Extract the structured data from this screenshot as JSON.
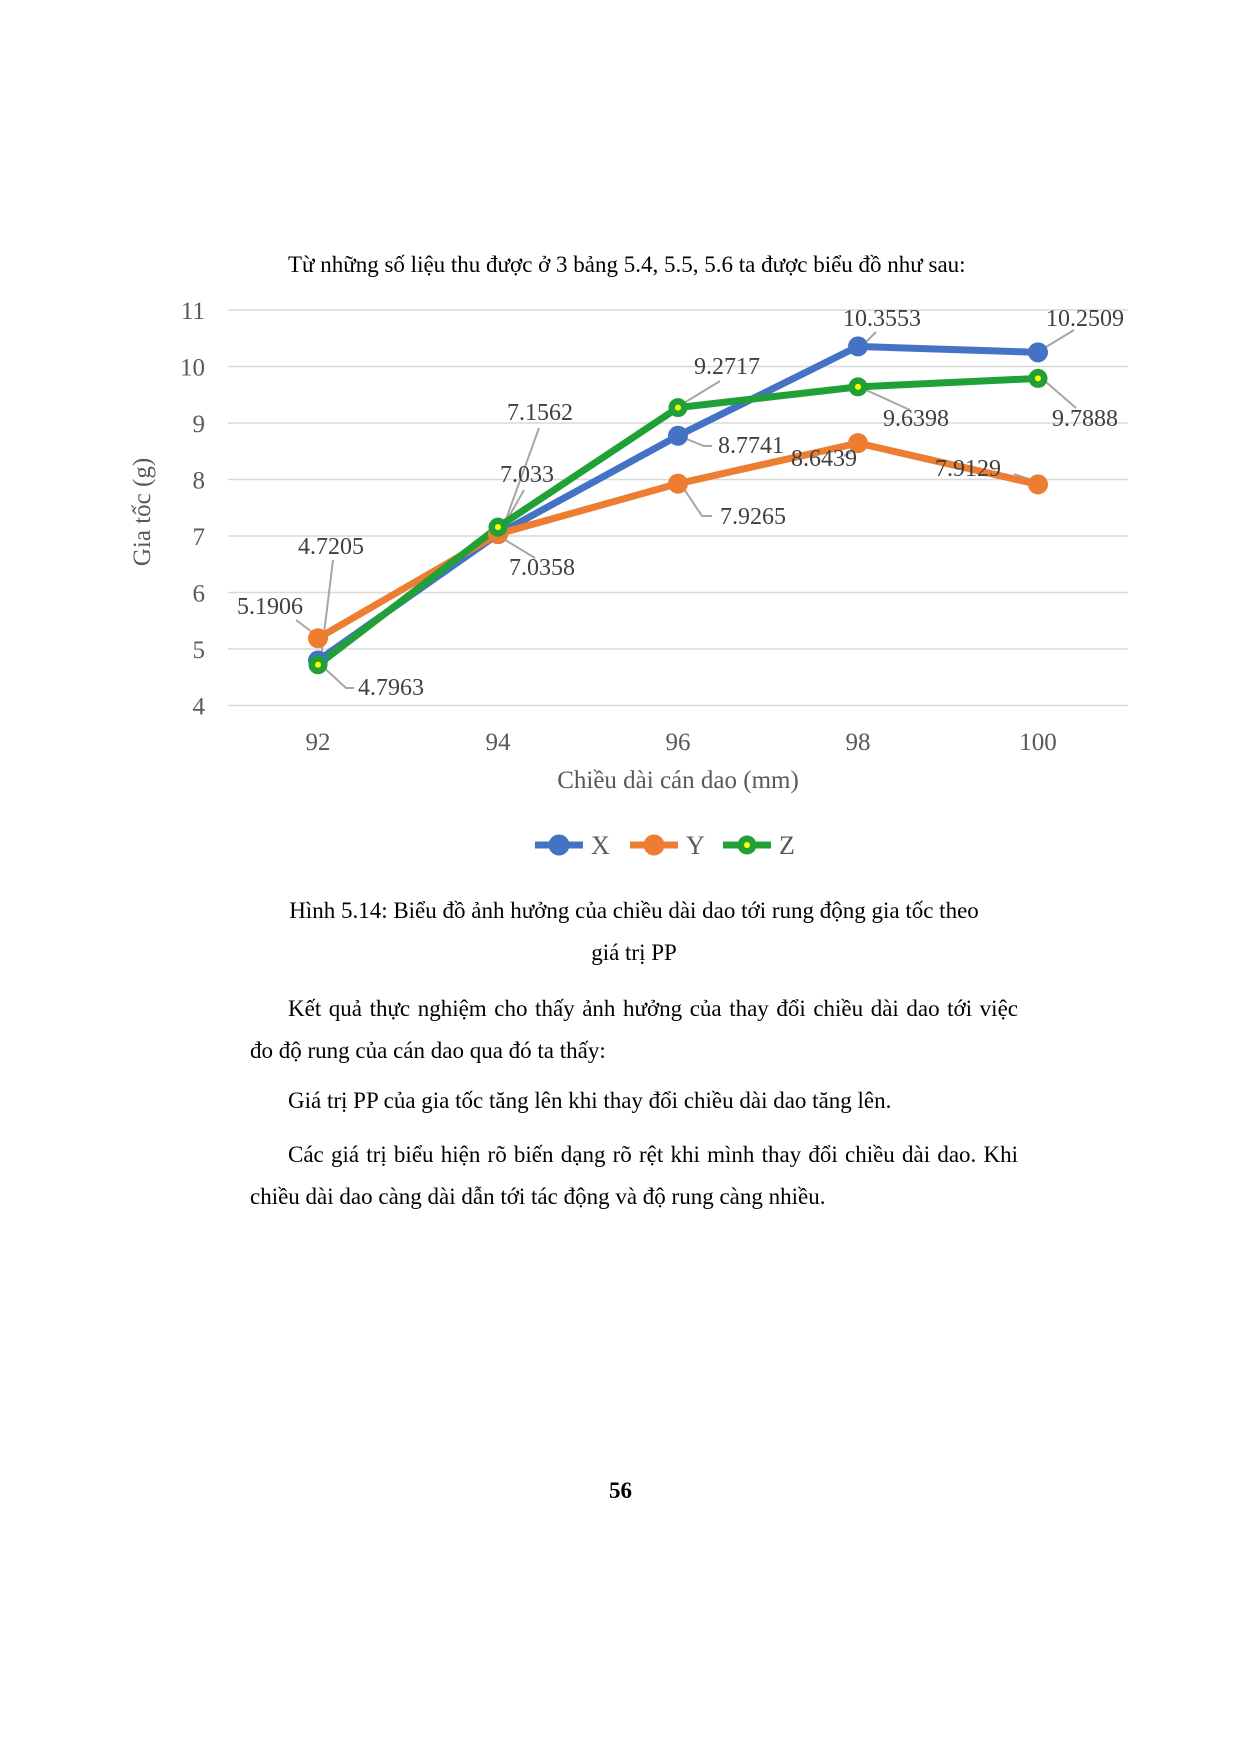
{
  "intro_text": "Từ những số liệu thu được ở 3 bảng 5.4, 5.5, 5.6 ta được biểu đồ như sau:",
  "figure": {
    "caption_line1": "Hình 5.14: Biểu đồ ảnh hưởng của chiều dài dao tới rung động gia tốc theo",
    "caption_line2": "giá trị PP"
  },
  "body": {
    "p1": "Kết quả thực nghiệm cho thấy ảnh hưởng của thay đổi chiều dài dao tới việc đo độ rung của cán dao qua đó ta thấy:",
    "p2": "Giá trị PP của gia tốc tăng lên khi thay đổi chiều dài dao tăng lên.",
    "p3": "Các giá trị biểu hiện rõ biến dạng rõ rệt khi mình thay đổi chiều dài dao. Khi chiều dài dao càng dài dẫn tới tác động và độ rung càng nhiều."
  },
  "page": {
    "number": "56"
  },
  "chart_data": {
    "type": "line",
    "title": "",
    "x": [
      92,
      94,
      96,
      98,
      100
    ],
    "xlabel": "Chiều dài cán dao (mm)",
    "ylabel": "Gia tốc (g)",
    "ylim": [
      4,
      11
    ],
    "yticks": [
      4,
      5,
      6,
      7,
      8,
      9,
      10,
      11
    ],
    "grid": true,
    "legend_position": "bottom",
    "series": [
      {
        "name": "X",
        "color": "#4472C4",
        "values": [
          4.7963,
          7.033,
          8.7741,
          10.3553,
          10.2509
        ],
        "labels": [
          "4.7963",
          "7.033",
          "8.7741",
          "10.3553",
          "10.2509"
        ]
      },
      {
        "name": "Y",
        "color": "#ED7D31",
        "values": [
          5.1906,
          7.0358,
          7.9265,
          8.6439,
          7.9129
        ],
        "labels": [
          "5.1906",
          "7.0358",
          "7.9265",
          "8.6439",
          "7.9129"
        ]
      },
      {
        "name": "Z",
        "color": "#21A038",
        "marker_center": "#FFFF00",
        "values": [
          4.7205,
          7.1562,
          9.2717,
          9.6398,
          9.7888
        ],
        "labels": [
          "4.7205",
          "7.1562",
          "9.2717",
          "9.6398",
          "9.7888"
        ]
      }
    ],
    "colors": {
      "grid": "#D9D9D9",
      "axis_text": "#595959",
      "data_label": "#404040",
      "leader_line": "#A6A6A6"
    }
  }
}
